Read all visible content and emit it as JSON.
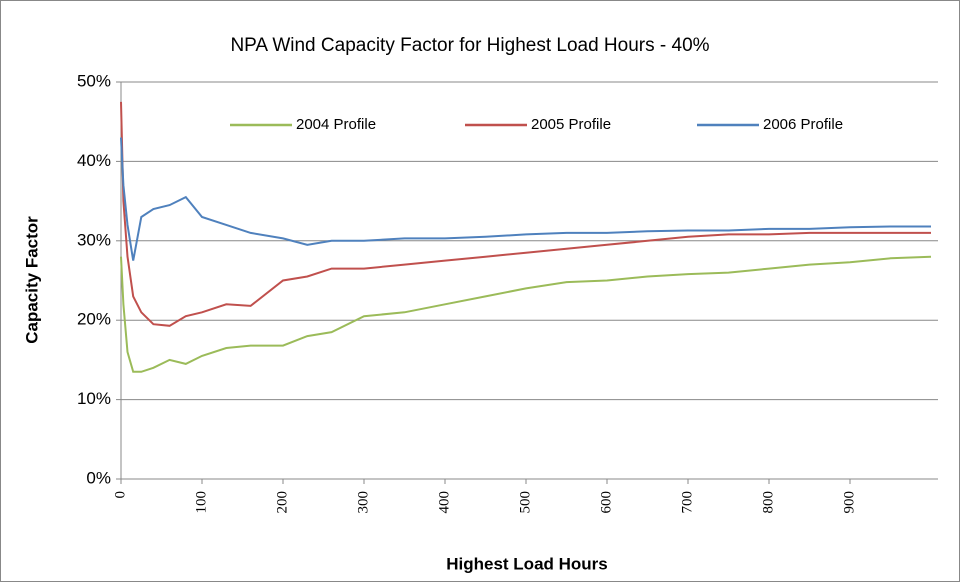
{
  "chart_data": {
    "type": "line",
    "title": "NPA Wind Capacity Factor for Highest Load Hours - 40%",
    "x_label": "Highest Load Hours",
    "y_label": "Capacity Factor",
    "x": [
      0,
      3,
      8,
      15,
      25,
      40,
      60,
      80,
      100,
      130,
      160,
      200,
      230,
      260,
      300,
      350,
      400,
      450,
      500,
      550,
      600,
      650,
      700,
      750,
      800,
      850,
      900,
      950,
      1000
    ],
    "series": [
      {
        "name": "2004 Profile",
        "color": "#9bbb59",
        "values": [
          28,
          22,
          16,
          13.5,
          13.5,
          14,
          15,
          14.5,
          15.5,
          16.5,
          16.8,
          16.8,
          18,
          18.5,
          20.5,
          21,
          22,
          23,
          24,
          24.8,
          25,
          25.5,
          25.8,
          26,
          26.5,
          27,
          27.3,
          27.8,
          28
        ]
      },
      {
        "name": "2005 Profile",
        "color": "#c0504d",
        "values": [
          47.5,
          35,
          28,
          23,
          21,
          19.5,
          19.3,
          20.5,
          21,
          22,
          21.8,
          25,
          25.5,
          26.5,
          26.5,
          27,
          27.5,
          28,
          28.5,
          29,
          29.5,
          30,
          30.5,
          30.8,
          30.8,
          31,
          31,
          31,
          31
        ]
      },
      {
        "name": "2006 Profile",
        "color": "#4f81bd",
        "values": [
          43,
          37,
          32,
          27.5,
          33,
          34,
          34.5,
          35.5,
          33,
          32,
          31,
          30.3,
          29.5,
          30,
          30,
          30.3,
          30.3,
          30.5,
          30.8,
          31,
          31,
          31.2,
          31.3,
          31.3,
          31.5,
          31.5,
          31.7,
          31.8,
          31.8
        ]
      }
    ],
    "xlim": [
      0,
      1000
    ],
    "xticks": [
      0,
      100,
      200,
      300,
      400,
      500,
      600,
      700,
      800,
      900
    ],
    "ylim": [
      0,
      50
    ],
    "yticks": [
      {
        "value": 0,
        "label": "0%"
      },
      {
        "value": 10,
        "label": "10%"
      },
      {
        "value": 20,
        "label": "20%"
      },
      {
        "value": 30,
        "label": "30%"
      },
      {
        "value": 40,
        "label": "40%"
      },
      {
        "value": 50,
        "label": "50%"
      }
    ],
    "grid": true,
    "legend": "top"
  }
}
